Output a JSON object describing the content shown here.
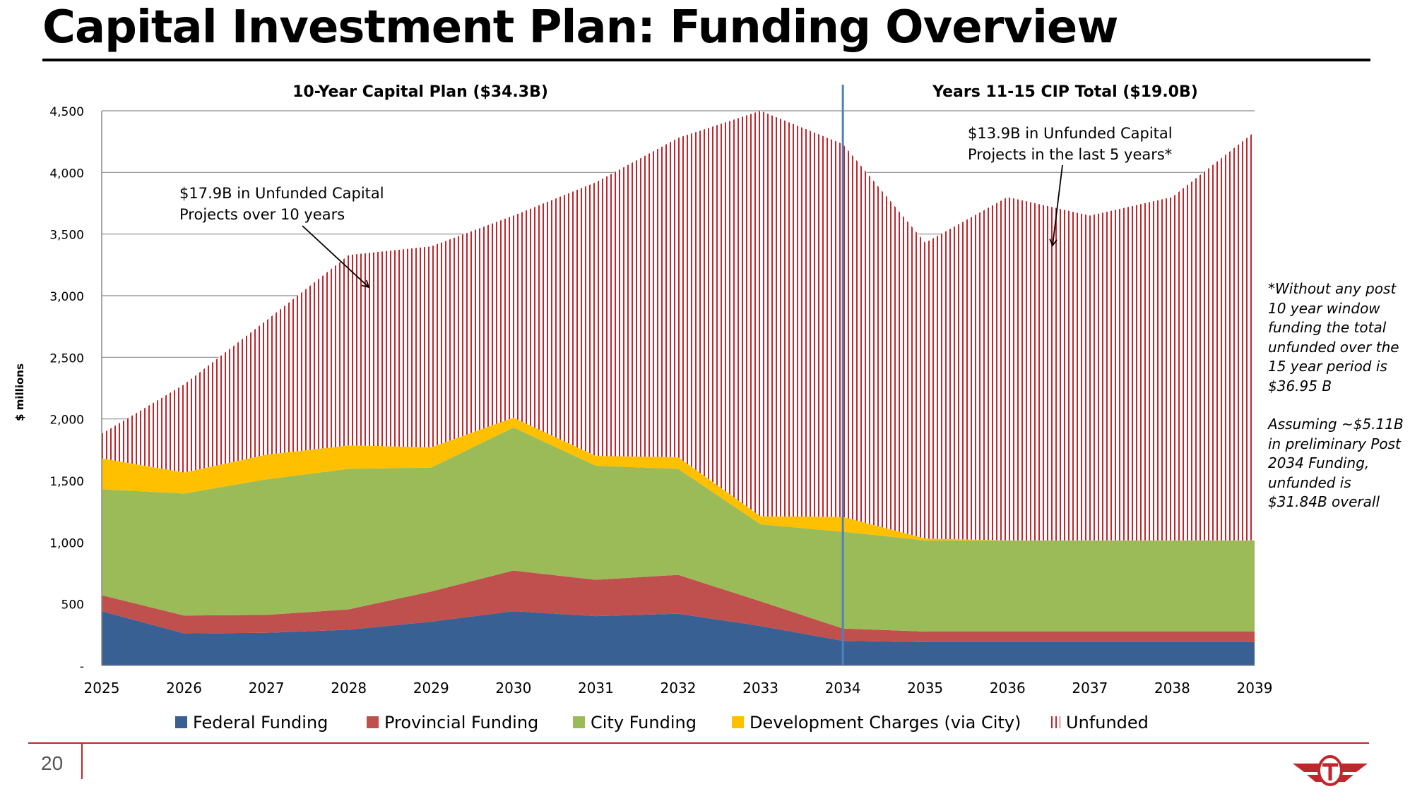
{
  "page": {
    "title": "Capital Investment Plan: Funding Overview",
    "page_number": "20",
    "footnote_1": "*Without any post 10 year window funding the total unfunded over the 15 year period is $36.95 B",
    "footnote_2": "Assuming  ~$5.11B in preliminary Post 2034 Funding, unfunded is $31.84B overall"
  },
  "chart_data": {
    "type": "area",
    "stacked": true,
    "ylabel": "$ millions",
    "xlabel": "",
    "ylim": [
      0,
      4500
    ],
    "yticks": [
      0,
      500,
      1000,
      1500,
      2000,
      2500,
      3000,
      3500,
      4000,
      4500
    ],
    "ytick_labels": [
      "-",
      "500",
      "1,000",
      "1,500",
      "2,000",
      "2,500",
      "3,000",
      "3,500",
      "4,000",
      "4,500"
    ],
    "x": [
      "2025",
      "2026",
      "2027",
      "2028",
      "2029",
      "2030",
      "2031",
      "2032",
      "2033",
      "2034",
      "2035",
      "2036",
      "2037",
      "2038",
      "2039"
    ],
    "grid": "horizontal",
    "legend_position": "bottom",
    "series": [
      {
        "name": "Federal Funding",
        "color": "#386092",
        "pattern": "solid",
        "values": [
          440,
          260,
          265,
          290,
          355,
          440,
          400,
          420,
          320,
          200,
          190,
          190,
          190,
          190,
          190
        ]
      },
      {
        "name": "Provincial Funding",
        "color": "#c0504d",
        "pattern": "solid",
        "values": [
          130,
          145,
          145,
          165,
          245,
          330,
          295,
          315,
          200,
          100,
          85,
          85,
          85,
          85,
          85
        ]
      },
      {
        "name": "City Funding",
        "color": "#9bbb59",
        "pattern": "solid",
        "values": [
          860,
          990,
          1100,
          1140,
          1005,
          1160,
          925,
          860,
          625,
          785,
          740,
          740,
          740,
          740,
          740
        ]
      },
      {
        "name": "Development Charges (via City)",
        "color": "#ffc000",
        "pattern": "solid",
        "values": [
          250,
          170,
          200,
          190,
          165,
          80,
          80,
          95,
          65,
          120,
          15,
          0,
          0,
          0,
          0
        ]
      },
      {
        "name": "Unfunded",
        "color": "#c0262b",
        "pattern": "vertical-hatch",
        "values": [
          200,
          715,
          1090,
          1545,
          1630,
          1640,
          2220,
          2590,
          3290,
          3025,
          2400,
          2785,
          2635,
          2785,
          3315
        ]
      }
    ],
    "divider_after": "2034",
    "section_labels": [
      "10-Year Capital Plan ($34.3B)",
      "Years 11-15 CIP Total ($19.0B)"
    ],
    "annotations": [
      {
        "text_line1": "$17.9B in Unfunded Capital",
        "text_line2": "Projects over 10 years",
        "points_to_x": "2028"
      },
      {
        "text_line1": "$13.9B in Unfunded Capital",
        "text_line2": "Projects in the last 5 years*",
        "points_to_x": "2037"
      }
    ]
  }
}
